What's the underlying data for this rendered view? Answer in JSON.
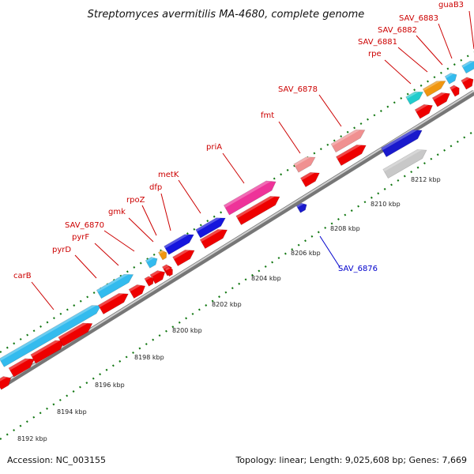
{
  "title": "Streptomyces avermitilis MA-4680, complete genome",
  "footer": {
    "accession": "Accession: NC_003155",
    "topology": "Topology: linear; Length: 9,025,608 bp; Genes: 7,669"
  },
  "colors": {
    "backbone": "#999999",
    "forward_gene": "#ee0000",
    "reverse_gene": "#2222dd",
    "cyan": "#33bbee",
    "orange": "#f0960f",
    "magenta": "#ee3399",
    "pink": "#f09090",
    "teal": "#22cccc",
    "grey_gene": "#c8c8c8",
    "dot_scale": "#117711",
    "label_red": "#cc0000",
    "label_blue": "#0000cc"
  },
  "scale": {
    "ticks": [
      {
        "kbp": 8192,
        "label": "8192 kbp"
      },
      {
        "kbp": 8194,
        "label": "8194 kbp"
      },
      {
        "kbp": 8196,
        "label": "8196 kbp"
      },
      {
        "kbp": 8198,
        "label": "8198 kbp"
      },
      {
        "kbp": 8200,
        "label": "8200 kbp"
      },
      {
        "kbp": 8202,
        "label": "8202 kbp"
      },
      {
        "kbp": 8204,
        "label": "8204 kbp"
      },
      {
        "kbp": 8206,
        "label": "8206 kbp"
      },
      {
        "kbp": 8208,
        "label": "8208 kbp"
      },
      {
        "kbp": 8210,
        "label": "8210 kbp"
      },
      {
        "kbp": 8212,
        "label": "8212 kbp"
      }
    ]
  },
  "gene_labels": [
    {
      "name": "carB",
      "color": "red"
    },
    {
      "name": "pyrD",
      "color": "red"
    },
    {
      "name": "pyrF",
      "color": "red"
    },
    {
      "name": "SAV_6870",
      "color": "red"
    },
    {
      "name": "gmk",
      "color": "red"
    },
    {
      "name": "rpoZ",
      "color": "red"
    },
    {
      "name": "dfp",
      "color": "red"
    },
    {
      "name": "metK",
      "color": "red"
    },
    {
      "name": "priA",
      "color": "red"
    },
    {
      "name": "fmt",
      "color": "red"
    },
    {
      "name": "SAV_6878",
      "color": "red"
    },
    {
      "name": "rpe",
      "color": "red"
    },
    {
      "name": "SAV_6881",
      "color": "red"
    },
    {
      "name": "SAV_6882",
      "color": "red"
    },
    {
      "name": "SAV_6883",
      "color": "red"
    },
    {
      "name": "guaB3",
      "color": "red"
    },
    {
      "name": "SAV_6876",
      "color": "blue"
    }
  ]
}
